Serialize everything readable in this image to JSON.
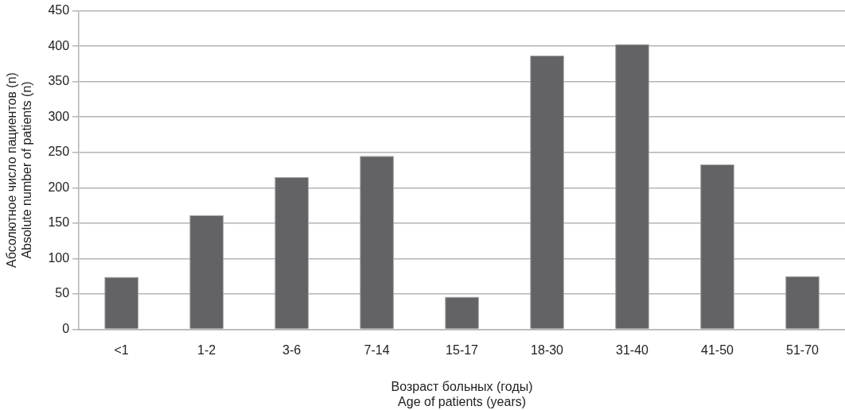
{
  "chart_data": {
    "type": "bar",
    "categories": [
      "<1",
      "1-2",
      "3-6",
      "7-14",
      "15-17",
      "18-30",
      "31-40",
      "41-50",
      "51-70"
    ],
    "values": [
      74,
      161,
      215,
      245,
      46,
      387,
      403,
      233,
      75
    ],
    "color": "#636365",
    "xlabel": "Возраст больных (годы)\nAge of patients (years)",
    "ylabel": "Абсолютное число пациентов (n)\nAbsolute number of patients (n)",
    "ylim": [
      0,
      450
    ],
    "yticks": [
      0,
      50,
      100,
      150,
      200,
      250,
      300,
      350,
      400,
      450
    ],
    "grid": "y",
    "legend": false
  }
}
